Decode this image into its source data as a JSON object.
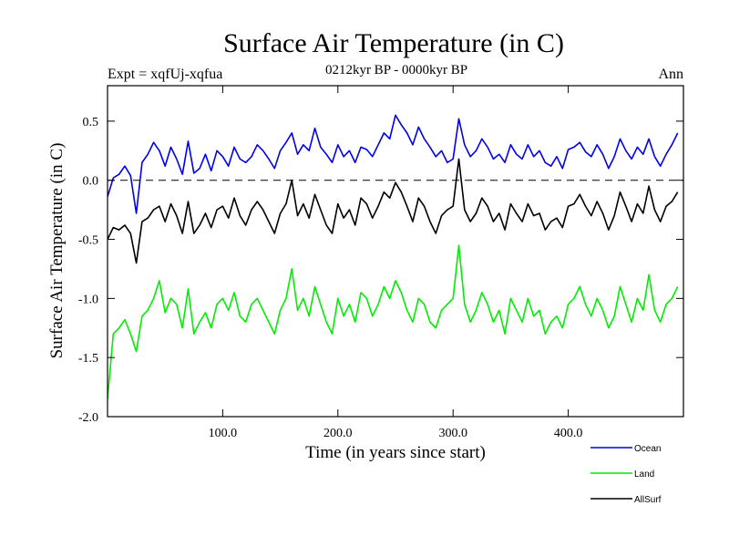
{
  "chart_data": {
    "type": "line",
    "title": "Surface Air Temperature (in C)",
    "subtitle": "0212kyr BP - 0000kyr BP",
    "left_annotation": "Expt = xqfUj-xqfua",
    "right_annotation": "Ann",
    "xlabel": "Time (in years since start)",
    "ylabel": "Surface Air Temperature (in C)",
    "xlim": [
      0,
      500
    ],
    "ylim": [
      -2.0,
      0.8
    ],
    "xticks": [
      100,
      200,
      300,
      400
    ],
    "xtick_labels": [
      "100.0",
      "200.0",
      "300.0",
      "400.0"
    ],
    "yticks": [
      -2.0,
      -1.5,
      -1.0,
      -0.5,
      0.0,
      0.5
    ],
    "ytick_labels": [
      "-2.0",
      "-1.5",
      "-1.0",
      "-0.5",
      "0.0",
      "0.5"
    ],
    "reference_line": 0.0,
    "x_step": 5,
    "series": [
      {
        "name": "Ocean",
        "color": "#0000ee",
        "values": [
          -0.14,
          0.02,
          0.05,
          0.12,
          0.04,
          -0.28,
          0.15,
          0.22,
          0.32,
          0.25,
          0.12,
          0.28,
          0.18,
          0.05,
          0.33,
          0.06,
          0.1,
          0.22,
          0.08,
          0.25,
          0.2,
          0.12,
          0.28,
          0.18,
          0.15,
          0.2,
          0.3,
          0.25,
          0.18,
          0.1,
          0.25,
          0.32,
          0.4,
          0.22,
          0.3,
          0.25,
          0.44,
          0.28,
          0.22,
          0.15,
          0.3,
          0.2,
          0.25,
          0.15,
          0.28,
          0.26,
          0.2,
          0.3,
          0.4,
          0.35,
          0.55,
          0.47,
          0.4,
          0.3,
          0.45,
          0.35,
          0.28,
          0.2,
          0.25,
          0.15,
          0.18,
          0.52,
          0.3,
          0.2,
          0.25,
          0.35,
          0.28,
          0.18,
          0.22,
          0.15,
          0.3,
          0.22,
          0.18,
          0.3,
          0.2,
          0.25,
          0.15,
          0.12,
          0.2,
          0.1,
          0.26,
          0.28,
          0.32,
          0.24,
          0.2,
          0.3,
          0.22,
          0.1,
          0.2,
          0.35,
          0.25,
          0.18,
          0.28,
          0.22,
          0.35,
          0.2,
          0.12,
          0.22,
          0.3,
          0.4
        ]
      },
      {
        "name": "Land",
        "color": "#00ee00",
        "values": [
          -1.85,
          -1.3,
          -1.25,
          -1.18,
          -1.3,
          -1.45,
          -1.15,
          -1.1,
          -1.0,
          -0.85,
          -1.12,
          -1.0,
          -1.05,
          -1.25,
          -0.92,
          -1.3,
          -1.2,
          -1.12,
          -1.25,
          -1.05,
          -1.0,
          -1.1,
          -0.95,
          -1.15,
          -1.2,
          -1.05,
          -1.0,
          -1.1,
          -1.2,
          -1.3,
          -1.1,
          -1.0,
          -0.75,
          -1.1,
          -1.0,
          -1.15,
          -0.9,
          -1.05,
          -1.2,
          -1.3,
          -1.0,
          -1.15,
          -1.05,
          -1.2,
          -0.95,
          -1.0,
          -1.15,
          -1.05,
          -0.9,
          -1.0,
          -0.85,
          -0.95,
          -1.1,
          -1.2,
          -1.0,
          -1.05,
          -1.2,
          -1.25,
          -1.1,
          -1.05,
          -1.0,
          -0.55,
          -1.05,
          -1.2,
          -1.1,
          -0.95,
          -1.05,
          -1.2,
          -1.1,
          -1.3,
          -1.0,
          -1.1,
          -1.2,
          -1.0,
          -1.15,
          -1.1,
          -1.3,
          -1.2,
          -1.15,
          -1.25,
          -1.05,
          -1.0,
          -0.9,
          -1.05,
          -1.15,
          -1.0,
          -1.1,
          -1.25,
          -1.15,
          -0.9,
          -1.05,
          -1.2,
          -1.0,
          -1.1,
          -0.8,
          -1.1,
          -1.2,
          -1.05,
          -1.0,
          -0.9
        ]
      },
      {
        "name": "AllSurf",
        "color": "#000000",
        "values": [
          -0.5,
          -0.4,
          -0.42,
          -0.38,
          -0.45,
          -0.7,
          -0.35,
          -0.32,
          -0.25,
          -0.22,
          -0.35,
          -0.2,
          -0.3,
          -0.45,
          -0.18,
          -0.45,
          -0.38,
          -0.28,
          -0.4,
          -0.25,
          -0.22,
          -0.32,
          -0.15,
          -0.3,
          -0.38,
          -0.25,
          -0.18,
          -0.25,
          -0.35,
          -0.45,
          -0.28,
          -0.2,
          0.0,
          -0.3,
          -0.2,
          -0.32,
          -0.12,
          -0.25,
          -0.38,
          -0.45,
          -0.2,
          -0.32,
          -0.25,
          -0.38,
          -0.15,
          -0.2,
          -0.32,
          -0.22,
          -0.1,
          -0.15,
          -0.02,
          -0.1,
          -0.22,
          -0.35,
          -0.15,
          -0.22,
          -0.35,
          -0.45,
          -0.3,
          -0.25,
          -0.22,
          0.18,
          -0.25,
          -0.35,
          -0.28,
          -0.15,
          -0.22,
          -0.35,
          -0.28,
          -0.42,
          -0.2,
          -0.28,
          -0.35,
          -0.2,
          -0.3,
          -0.28,
          -0.42,
          -0.35,
          -0.32,
          -0.4,
          -0.22,
          -0.2,
          -0.12,
          -0.22,
          -0.3,
          -0.18,
          -0.28,
          -0.42,
          -0.3,
          -0.1,
          -0.22,
          -0.35,
          -0.2,
          -0.28,
          -0.05,
          -0.25,
          -0.35,
          -0.22,
          -0.18,
          -0.1
        ]
      }
    ],
    "legend_location": "bottom-right"
  }
}
